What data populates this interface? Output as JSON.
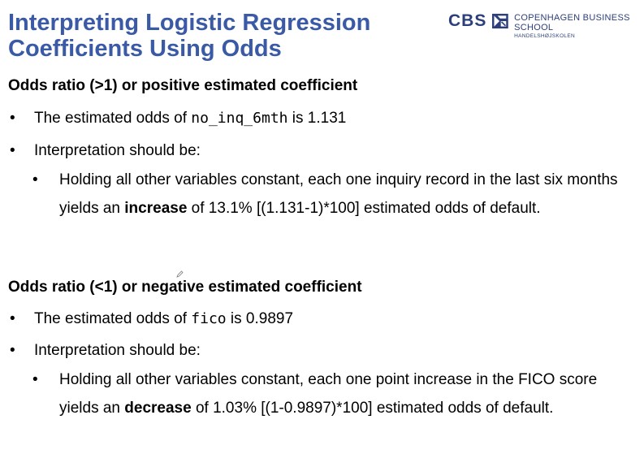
{
  "title": {
    "line1": "Interpreting Logistic Regression",
    "line2": "Coefficients Using Odds"
  },
  "logo": {
    "abbr": "CBS",
    "icon": "cbs-emblem-icon",
    "name": "COPENHAGEN BUSINESS SCHOOL",
    "subname": "HANDELSHØJSKOLEN"
  },
  "colors": {
    "title": "#3b5aa6",
    "logo": "#2c3f7a",
    "text": "#000000"
  },
  "section1": {
    "heading": "Odds ratio (>1) or positive estimated coefficient",
    "bullet1": {
      "prefix": "The estimated odds of ",
      "code": "no_inq_6mth",
      "suffix": " is 1.131"
    },
    "bullet2": "Interpretation should be:",
    "sub": {
      "part1": "Holding all other variables constant, each one inquiry record in the last six months yields an ",
      "emphasis": "increase",
      "part2": " of 13.1% [(1.131-1)*100] estimated odds of default."
    }
  },
  "section2": {
    "heading": "Odds ratio (<1) or negative estimated coefficient",
    "bullet1": {
      "prefix": "The estimated odds of ",
      "code": "fico",
      "suffix": " is 0.9897"
    },
    "bullet2": "Interpretation should be:",
    "sub": {
      "part1": "Holding all other variables constant, each one point increase in the FICO score yields an ",
      "emphasis": "decrease",
      "part2": " of 1.03% [(1-0.9897)*100] estimated odds of default."
    }
  },
  "bullet_glyph": "•",
  "annotation_icon": "pencil-icon"
}
